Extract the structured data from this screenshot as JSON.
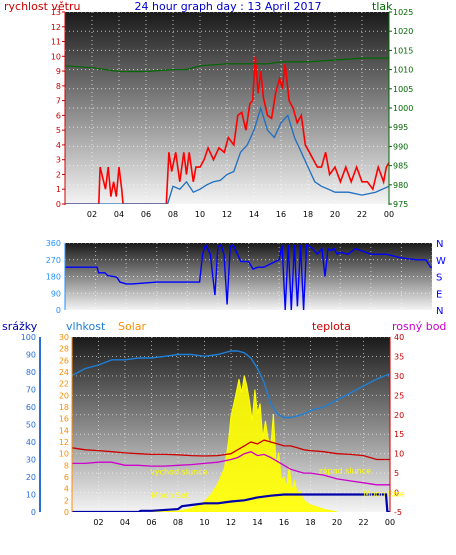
{
  "colors": {
    "wind": "#ff0000",
    "pressure": "#006600",
    "gust": "#ff0000",
    "avg": "#1f6fc0",
    "title": "#0000cc",
    "dir": "#0000ff",
    "rain": "#0000aa",
    "humidity": "#1e7fd8",
    "solar": "#ffff00",
    "solar_label": "#ff8c00",
    "temp": "#cc0000",
    "dew": "#cc00cc",
    "axis_left": "#cc0000",
    "axis_blue": "#1e90ff",
    "axis_rain": "#2a6fd6"
  },
  "chart_data": [
    {
      "type": "line",
      "title": "24 hour graph day : 13 April 2017",
      "left_label": "rychlost větru",
      "right_label": "tlak",
      "x_ticks": [
        "02",
        "04",
        "06",
        "08",
        "10",
        "12",
        "14",
        "16",
        "18",
        "20",
        "22",
        "00"
      ],
      "y_left_ticks": [
        "0",
        "1",
        "2",
        "3",
        "4",
        "5",
        "6",
        "7",
        "8",
        "9",
        "10",
        "11",
        "12",
        "13"
      ],
      "y_right_ticks": [
        "975",
        "980",
        "985",
        "990",
        "995",
        "1000",
        "1005",
        "1010",
        "1015",
        "1020",
        "1025"
      ],
      "ylim_left": [
        0,
        13
      ],
      "ylim_right": [
        975,
        1025
      ],
      "xlim_hours": [
        0,
        24
      ],
      "series": [
        {
          "kind": "gust",
          "x": [
            0,
            2.5,
            2.6,
            3,
            3.2,
            3.4,
            3.6,
            3.8,
            4,
            4.2,
            4.3,
            7.5,
            7.7,
            7.9,
            8.2,
            8.5,
            8.8,
            9,
            9.2,
            9.5,
            9.7,
            10,
            10.3,
            10.6,
            11,
            11.4,
            11.8,
            12.1,
            12.5,
            12.8,
            13.1,
            13.4,
            13.7,
            13.9,
            14,
            14.1,
            14.3,
            14.5,
            14.7,
            15,
            15.3,
            15.6,
            15.9,
            16.1,
            16.3,
            16.6,
            16.9,
            17.2,
            17.5,
            17.8,
            18.1,
            18.4,
            18.7,
            19,
            19.3,
            19.6,
            20,
            20.4,
            20.8,
            21.2,
            21.6,
            22,
            22.4,
            22.8,
            23.2,
            23.6,
            23.8,
            24
          ],
          "y": [
            0,
            0,
            2.5,
            1,
            2.5,
            0.5,
            1.5,
            0.5,
            2.5,
            1,
            0,
            0,
            3.5,
            2.2,
            3.5,
            1.5,
            3.5,
            2,
            3.5,
            1.5,
            2.5,
            2.5,
            3,
            3.8,
            3,
            3.8,
            3.5,
            4.5,
            4,
            6,
            6.2,
            5,
            6.8,
            7,
            8.5,
            10,
            7.5,
            9,
            7.2,
            6,
            5.8,
            7.5,
            8.5,
            7.8,
            9.5,
            7,
            6.5,
            5.5,
            6,
            4,
            3.5,
            3,
            2.5,
            2.5,
            3.5,
            2,
            2.5,
            1.5,
            2.5,
            1.5,
            2.5,
            1.5,
            1.5,
            1,
            2.5,
            1.5,
            2.5,
            2.8
          ]
        },
        {
          "kind": "average",
          "x": [
            0,
            7.6,
            8,
            8.5,
            9,
            9.5,
            10,
            10.5,
            11,
            11.5,
            12,
            12.5,
            13,
            13.5,
            14,
            14.5,
            15,
            15.5,
            16,
            16.5,
            17,
            17.5,
            18,
            18.5,
            19,
            19.5,
            20,
            21,
            22,
            23,
            24
          ],
          "y": [
            0,
            0,
            1.2,
            1,
            1.5,
            0.8,
            1,
            1.3,
            1.5,
            1.6,
            2,
            2.2,
            3.5,
            4,
            5,
            6.5,
            5,
            4.5,
            5.5,
            6,
            4.5,
            3.5,
            2.5,
            1.5,
            1.2,
            1,
            0.8,
            0.8,
            0.6,
            0.8,
            1.2
          ]
        },
        {
          "kind": "pressure",
          "x": [
            0,
            2,
            4,
            6,
            8,
            9,
            10,
            12,
            14,
            15,
            16,
            18,
            20,
            22,
            24
          ],
          "y": [
            1011,
            1010.5,
            1009.5,
            1009.5,
            1010,
            1010,
            1011,
            1011.5,
            1011.5,
            1011.5,
            1012,
            1012,
            1012.5,
            1013,
            1013
          ]
        }
      ]
    },
    {
      "type": "line",
      "title": "",
      "y_ticks": [
        "0",
        "90",
        "180",
        "270",
        "360"
      ],
      "ylim": [
        0,
        360
      ],
      "compass": [
        "N",
        "W",
        "S",
        "E",
        "N"
      ],
      "xlim_hours": [
        0,
        24
      ],
      "series": [
        {
          "kind": "direction",
          "x": [
            0,
            2.1,
            2.2,
            2.6,
            2.8,
            3.2,
            3.4,
            3.6,
            4,
            4.4,
            6,
            7,
            8.8,
            9,
            9.2,
            9.5,
            9.8,
            10,
            10.2,
            10.4,
            10.6,
            10.8,
            11,
            11.5,
            12,
            12.3,
            12.6,
            13,
            13.5,
            14,
            14.2,
            14.4,
            14.6,
            14.8,
            15,
            15.2,
            15.4,
            15.6,
            15.8,
            16,
            16.2,
            16.5,
            16.8,
            17,
            17.2,
            17.4,
            17.6,
            17.8,
            18,
            18.5,
            19,
            20,
            21,
            22,
            23,
            23.6,
            23.9,
            24
          ],
          "y": [
            230,
            230,
            200,
            200,
            185,
            180,
            175,
            150,
            140,
            140,
            150,
            150,
            150,
            300,
            350,
            300,
            80,
            340,
            350,
            300,
            30,
            340,
            350,
            260,
            260,
            220,
            230,
            230,
            250,
            270,
            350,
            0,
            350,
            0,
            350,
            20,
            350,
            0,
            350,
            340,
            330,
            300,
            330,
            180,
            330,
            320,
            330,
            300,
            310,
            300,
            330,
            300,
            300,
            280,
            270,
            270,
            230,
            230
          ]
        }
      ]
    },
    {
      "type": "line",
      "title": "",
      "left_labels": [
        "srážky",
        "vlhkost",
        "Solar"
      ],
      "right_labels": [
        "teplota",
        "rosný bod"
      ],
      "y_rain_ticks": [
        "0",
        "10",
        "20",
        "30",
        "40",
        "50",
        "60",
        "70",
        "80",
        "90",
        "100"
      ],
      "y_solar_ticks": [
        "0",
        "2",
        "4",
        "6",
        "8",
        "10",
        "12",
        "14",
        "16",
        "18",
        "20",
        "22",
        "24",
        "26",
        "28",
        "30"
      ],
      "y_temp_ticks": [
        "-5",
        "0",
        "5",
        "10",
        "15",
        "20",
        "25",
        "30",
        "35",
        "40"
      ],
      "ylim_humidity": [
        0,
        100
      ],
      "ylim_rain": [
        0,
        30
      ],
      "ylim_temp": [
        -5,
        40
      ],
      "ylim_solar": [
        0,
        1000
      ],
      "x_ticks": [
        "02",
        "04",
        "06",
        "08",
        "10",
        "12",
        "14",
        "16",
        "18",
        "20",
        "22",
        "00"
      ],
      "xlim_hours": [
        0,
        24
      ],
      "annotations": [
        {
          "text": "východ slunce",
          "x": 5.9,
          "y": 0.215
        },
        {
          "text": "Moon Set",
          "x": 6.0,
          "y": 0.08
        },
        {
          "text": "západ slunce",
          "x": 18.6,
          "y": 0.22
        },
        {
          "text": "Moon Rise",
          "x": 22.0,
          "y": 0.09
        }
      ],
      "series": [
        {
          "kind": "humidity",
          "x": [
            0,
            1,
            2,
            3,
            4,
            5,
            6,
            7,
            8,
            9,
            10,
            11,
            12,
            12.5,
            13,
            13.5,
            14,
            14.5,
            15,
            15.5,
            16,
            16.5,
            17,
            17.5,
            18,
            18.5,
            19,
            19.5,
            20,
            21,
            22,
            23,
            24
          ],
          "y": [
            78,
            82,
            84,
            87,
            87,
            88,
            88,
            89,
            90,
            90,
            89,
            90,
            92,
            92,
            91,
            88,
            82,
            74,
            62,
            56,
            54,
            54,
            55,
            56,
            58,
            59,
            60,
            62,
            64,
            68,
            72,
            76,
            79
          ]
        },
        {
          "kind": "temperature",
          "x": [
            0,
            1,
            2,
            3,
            4,
            5,
            6,
            7,
            8,
            9,
            10,
            11,
            12,
            12.5,
            13,
            13.5,
            14,
            14.5,
            15,
            15.5,
            16,
            16.5,
            17,
            17.5,
            18,
            19,
            20,
            21,
            22,
            23,
            24
          ],
          "y": [
            11.5,
            11,
            10.8,
            10.5,
            10.2,
            10,
            9.8,
            9.8,
            9.7,
            9.5,
            9.4,
            9.5,
            10,
            11,
            12,
            13,
            12.5,
            13.5,
            13,
            12.5,
            12,
            12,
            11.5,
            11,
            10.8,
            10.5,
            10,
            9.8,
            9.5,
            8.5,
            8.5
          ]
        },
        {
          "kind": "dewpoint",
          "x": [
            0,
            1,
            2,
            3,
            4,
            5,
            6,
            7,
            8,
            9,
            10,
            11,
            12,
            12.5,
            13,
            13.5,
            14,
            14.5,
            15,
            15.5,
            16,
            16.5,
            17,
            17.5,
            18,
            19,
            20,
            21,
            22,
            23,
            24
          ],
          "y": [
            7.5,
            7.5,
            7.8,
            7.8,
            7,
            7,
            6.8,
            6.8,
            7,
            7.2,
            7.5,
            7.8,
            8.5,
            9,
            10,
            10.5,
            9.5,
            9.8,
            9,
            8,
            7,
            6,
            5.5,
            5,
            5,
            4.5,
            3.5,
            3,
            2.5,
            2,
            2
          ]
        },
        {
          "kind": "solar",
          "x": [
            6,
            8,
            9,
            10,
            10.5,
            11,
            11.5,
            11.8,
            12,
            12.3,
            12.6,
            12.8,
            13,
            13.2,
            13.4,
            13.6,
            13.8,
            14,
            14.2,
            14.4,
            14.6,
            14.8,
            15,
            15.2,
            15.4,
            15.6,
            15.8,
            16,
            16.2,
            16.4,
            16.6,
            16.8,
            17,
            17.2,
            17.4,
            17.6,
            17.8,
            18,
            18.5,
            19,
            20
          ],
          "y": [
            0,
            5,
            20,
            60,
            100,
            160,
            250,
            400,
            550,
            650,
            760,
            680,
            780,
            720,
            630,
            520,
            700,
            560,
            620,
            420,
            520,
            420,
            380,
            560,
            260,
            340,
            180,
            200,
            140,
            260,
            120,
            180,
            100,
            120,
            80,
            60,
            50,
            40,
            30,
            15,
            0
          ]
        },
        {
          "kind": "rain",
          "x": [
            0,
            5,
            5.2,
            6,
            8,
            8.3,
            9,
            10,
            11,
            12,
            13,
            14,
            15,
            16,
            17,
            18,
            19,
            20,
            21,
            22,
            23,
            23.7,
            23.8,
            24
          ],
          "y": [
            0,
            0,
            0.2,
            0.2,
            0.5,
            1,
            1.2,
            1.5,
            1.5,
            1.8,
            2,
            2.5,
            2.8,
            3,
            3,
            3,
            3,
            3,
            3,
            3,
            3,
            3,
            0,
            0
          ]
        }
      ]
    }
  ]
}
